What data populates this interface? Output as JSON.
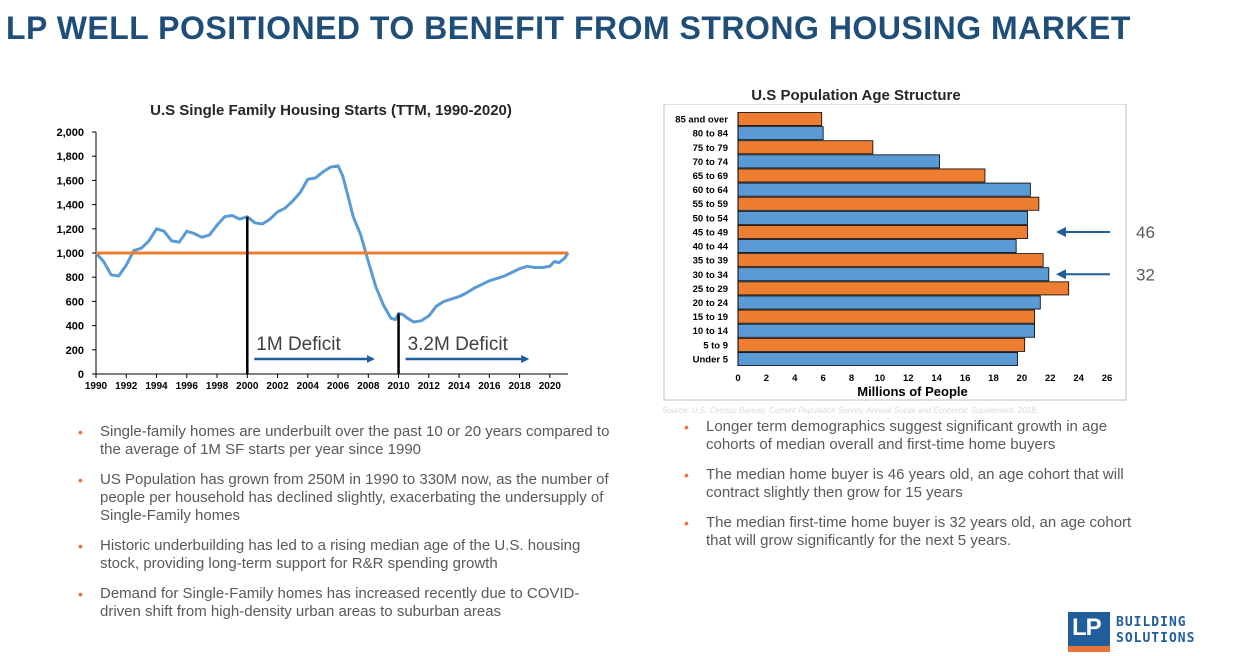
{
  "slide": {
    "title": "LP WELL POSITIONED TO BENEFIT FROM STRONG HOUSING MARKET"
  },
  "colors": {
    "title_blue": "#1f4e79",
    "line_blue": "#5b9bd5",
    "bar_orange": "#ed7d31",
    "bar_blue": "#5b9bd5",
    "arrow_blue": "#1f5d9b",
    "bullet_orange": "#e8743b"
  },
  "chart_data": [
    {
      "type": "line",
      "title": "U.S Single Family Housing Starts (TTM, 1990-2020)",
      "xlabel": "",
      "ylabel": "",
      "xlim": [
        1990,
        2021.2
      ],
      "ylim": [
        0,
        2000
      ],
      "x_ticks": [
        "1990",
        "1992",
        "1994",
        "1996",
        "1998",
        "2000",
        "2002",
        "2004",
        "2006",
        "2008",
        "2010",
        "2012",
        "2014",
        "2016",
        "2018",
        "2020"
      ],
      "y_ticks": [
        "0",
        "200",
        "400",
        "600",
        "800",
        "1,000",
        "1,200",
        "1,400",
        "1,600",
        "1,800",
        "2,000"
      ],
      "grid": false,
      "series": [
        {
          "x": [
            1990,
            1990.5,
            1991,
            1991.5,
            1992,
            1992.5,
            1993,
            1993.5,
            1994,
            1994.5,
            1995,
            1995.5,
            1996,
            1996.5,
            1997,
            1997.5,
            1998,
            1998.5,
            1999,
            1999.5,
            2000,
            2000.5,
            2001,
            2001.5,
            2002,
            2002.5,
            2003,
            2003.5,
            2004,
            2004.5,
            2005,
            2005.5,
            2006,
            2006.3,
            2006.6,
            2007,
            2007.5,
            2008,
            2008.5,
            2009,
            2009.5,
            2009.8,
            2010,
            2010.3,
            2010.6,
            2011,
            2011.5,
            2012,
            2012.5,
            2013,
            2013.5,
            2014,
            2014.5,
            2015,
            2015.5,
            2016,
            2016.5,
            2017,
            2017.5,
            2018,
            2018.5,
            2019,
            2019.5,
            2020,
            2020.3,
            2020.6,
            2021,
            2021.2
          ],
          "y": [
            1000,
            930,
            820,
            810,
            900,
            1020,
            1040,
            1100,
            1200,
            1180,
            1100,
            1090,
            1180,
            1160,
            1130,
            1150,
            1230,
            1300,
            1310,
            1280,
            1300,
            1250,
            1240,
            1280,
            1340,
            1370,
            1430,
            1500,
            1610,
            1620,
            1670,
            1710,
            1720,
            1640,
            1500,
            1300,
            1150,
            930,
            720,
            570,
            460,
            450,
            500,
            490,
            460,
            430,
            440,
            480,
            560,
            600,
            620,
            640,
            670,
            710,
            740,
            770,
            790,
            810,
            840,
            870,
            890,
            880,
            880,
            890,
            930,
            920,
            960,
            1000
          ]
        }
      ],
      "reference_line": {
        "value": 1000
      },
      "annotations": [
        {
          "text": "1M Deficit",
          "start_year": 2000,
          "arrow_to": 2008.3
        },
        {
          "text": "3.2M Deficit",
          "start_year": 2010,
          "arrow_to": 2018.5
        }
      ]
    },
    {
      "type": "bar",
      "orientation": "horizontal",
      "title": "U.S Population Age Structure",
      "xlabel": "Millions of People",
      "ylabel": "",
      "xlim": [
        0,
        26
      ],
      "x_ticks": [
        "0",
        "2",
        "4",
        "6",
        "8",
        "10",
        "12",
        "14",
        "16",
        "18",
        "20",
        "22",
        "24",
        "26"
      ],
      "categories": [
        "85 and over",
        "80 to 84",
        "75 to 79",
        "70 to 74",
        "65 to 69",
        "60 to 64",
        "55 to 59",
        "50 to 54",
        "45 to 49",
        "40 to 44",
        "35 to 39",
        "30 to 34",
        "25 to 29",
        "20 to 24",
        "15 to 19",
        "10 to 14",
        "5 to 9",
        "Under 5"
      ],
      "values": [
        5.9,
        6.0,
        9.5,
        14.2,
        17.4,
        20.6,
        21.2,
        20.4,
        20.4,
        19.6,
        21.5,
        21.9,
        23.3,
        21.3,
        20.9,
        20.9,
        20.2,
        19.7
      ],
      "bar_colors": [
        "#ed7d31",
        "#5b9bd5",
        "#ed7d31",
        "#5b9bd5",
        "#ed7d31",
        "#5b9bd5",
        "#ed7d31",
        "#5b9bd5",
        "#ed7d31",
        "#5b9bd5",
        "#ed7d31",
        "#5b9bd5",
        "#ed7d31",
        "#5b9bd5",
        "#ed7d31",
        "#5b9bd5",
        "#ed7d31",
        "#5b9bd5"
      ],
      "callouts": [
        {
          "text": "46",
          "category": "45 to 49"
        },
        {
          "text": "32",
          "category": "30 to 34"
        }
      ],
      "source": "Source: U.S. Census Bureau, Current Population Survey, Annual Social and Economic Supplement, 2018."
    }
  ],
  "bullets_left": [
    "Single-family homes are underbuilt over the past 10 or 20 years compared to the average of 1M SF starts per year since 1990",
    "US Population has grown from 250M in 1990 to 330M now, as the number of people per household has declined slightly, exacerbating the undersupply of Single-Family homes",
    "Historic underbuilding has led to a rising median age of the U.S. housing stock, providing long-term support for R&R spending growth",
    "Demand for Single-Family homes has increased recently due to COVID-driven shift from high-density urban areas to suburban areas"
  ],
  "bullets_right": [
    "Longer term demographics suggest significant growth in age cohorts of median overall and first-time home buyers",
    "The median home buyer is 46 years old, an age cohort that will contract slightly then grow for 15 years",
    "The median first-time home buyer is 32 years old, an age cohort that will grow significantly for the next 5 years."
  ],
  "bullet_marker": "•",
  "logo": {
    "mark": "LP",
    "line1": "BUILDING",
    "line2": "SOLUTIONS"
  }
}
